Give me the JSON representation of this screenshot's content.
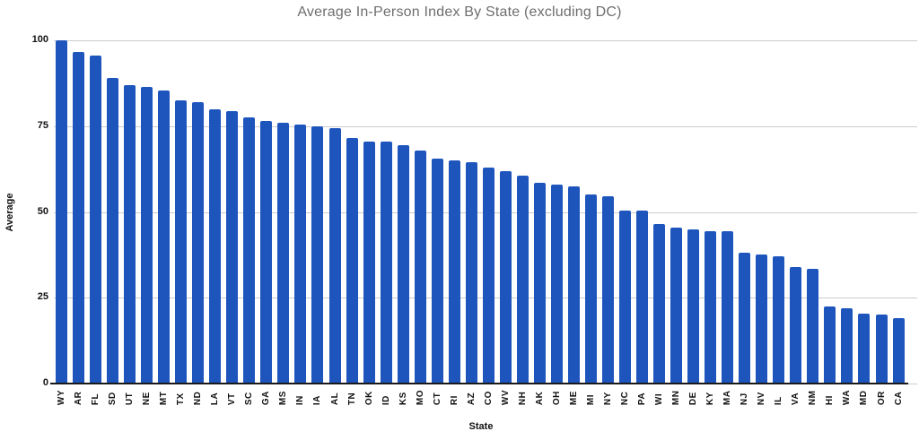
{
  "title": "Average In-Person Index By State (excluding DC)",
  "colors": {
    "bar": "#1d55bd",
    "gridline": "#cccccc",
    "axis_line": "#1a1a1a",
    "title_text": "#6e6e6e",
    "tick_text": "#111111",
    "background": "#ffffff"
  },
  "chart_data": {
    "type": "bar",
    "title": "Average In-Person Index By State (excluding DC)",
    "xlabel": "State",
    "ylabel": "Average",
    "ylim": [
      0,
      100
    ],
    "yticks": [
      0,
      25,
      50,
      75,
      100
    ],
    "grid": true,
    "legend": false,
    "categories": [
      "WY",
      "AR",
      "FL",
      "SD",
      "UT",
      "NE",
      "MT",
      "TX",
      "ND",
      "LA",
      "VT",
      "SC",
      "GA",
      "MS",
      "IN",
      "IA",
      "AL",
      "TN",
      "OK",
      "ID",
      "KS",
      "MO",
      "CT",
      "RI",
      "AZ",
      "CO",
      "WV",
      "NH",
      "AK",
      "OH",
      "ME",
      "MI",
      "NY",
      "NC",
      "PA",
      "WI",
      "MN",
      "DE",
      "KY",
      "MA",
      "NJ",
      "NV",
      "IL",
      "VA",
      "NM",
      "HI",
      "WA",
      "MD",
      "OR",
      "CA"
    ],
    "values": [
      100,
      96.5,
      95.5,
      89,
      87,
      86.5,
      85.5,
      82.5,
      82,
      80,
      79.5,
      77.5,
      76.5,
      76,
      75.5,
      75,
      74.5,
      71.5,
      70.5,
      70.5,
      69.5,
      68,
      65.5,
      65,
      64.5,
      63,
      62,
      60.5,
      58.5,
      58,
      57.5,
      55,
      54.5,
      50.5,
      50.5,
      46.5,
      45.5,
      45,
      44.5,
      44.5,
      38,
      37.5,
      37,
      34,
      33.5,
      22.5,
      22,
      20.5,
      20,
      19
    ]
  }
}
